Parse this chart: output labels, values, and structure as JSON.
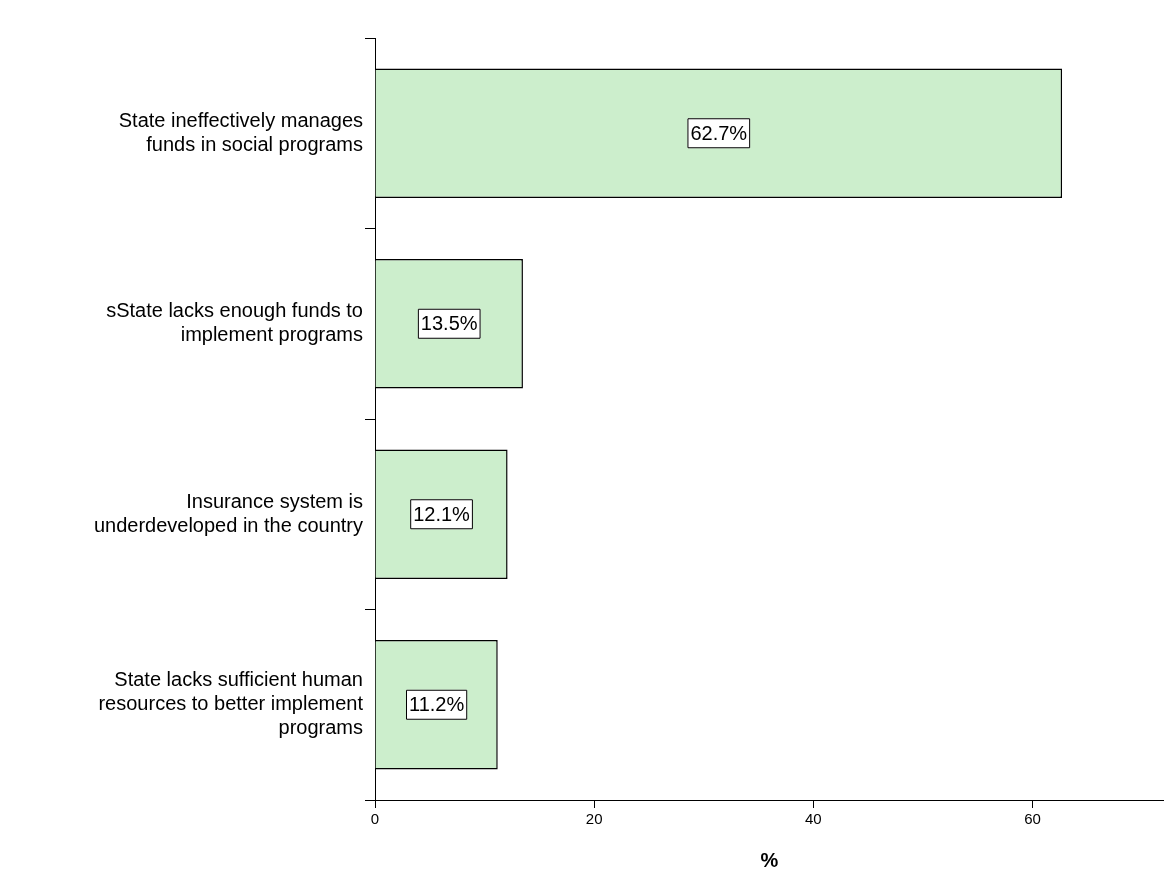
{
  "chart_data": {
    "type": "bar",
    "orientation": "horizontal",
    "xlabel": "%",
    "categories": [
      "State ineffectively manages\nfunds in social programs",
      "sState lacks enough funds to\nimplement programs",
      "Insurance system is\nunderdeveloped in the country",
      "State lacks sufficient human\nresources to better implement\nprograms"
    ],
    "values": [
      62.7,
      13.5,
      12.1,
      11.2
    ],
    "value_labels": [
      "62.7%",
      "13.5%",
      "12.1%",
      "11.2%"
    ],
    "color": "#cceecc",
    "xlim": [
      0,
      72
    ],
    "xticks": [
      0,
      20,
      40,
      60
    ],
    "grid": false,
    "legend": false
  }
}
